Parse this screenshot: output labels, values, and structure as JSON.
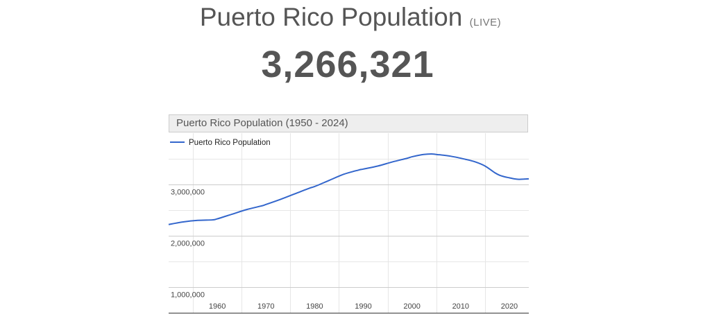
{
  "header": {
    "title": "Puerto Rico Population",
    "live_label": "(LIVE)",
    "counter": "3,266,321"
  },
  "colors": {
    "series": "#3366cc",
    "grid": "#cccccc",
    "minor_grid": "#e6e6e6",
    "text": "#555555"
  },
  "chart_data": {
    "type": "line",
    "title": "Puerto Rico Population (1950 - 2024)",
    "xlabel": "",
    "ylabel": "",
    "xlim": [
      1950,
      2024
    ],
    "ylim": [
      500000,
      4000000
    ],
    "grid": true,
    "legend_position": "top-left",
    "x_ticks": [
      1960,
      1970,
      1980,
      1990,
      2000,
      2010,
      2020
    ],
    "x_tick_labels": [
      "1960",
      "1970",
      "1980",
      "1990",
      "2000",
      "2010",
      "2020"
    ],
    "y_ticks": [
      1000000,
      2000000,
      3000000
    ],
    "y_tick_labels": [
      "1,000,000",
      "2,000,000",
      "3,000,000"
    ],
    "series": [
      {
        "name": "Puerto Rico Population",
        "x": [
          1950,
          1953,
          1956,
          1959,
          1960,
          1963,
          1966,
          1969,
          1970,
          1973,
          1976,
          1979,
          1980,
          1983,
          1986,
          1989,
          1990,
          1993,
          1996,
          1999,
          2000,
          2002,
          2003,
          2004,
          2005,
          2008,
          2011,
          2013,
          2015,
          2017,
          2018,
          2019,
          2020,
          2021,
          2022,
          2023,
          2024
        ],
        "values": [
          2220000,
          2270000,
          2300000,
          2310000,
          2330000,
          2420000,
          2510000,
          2580000,
          2610000,
          2710000,
          2820000,
          2930000,
          2960000,
          3080000,
          3200000,
          3280000,
          3300000,
          3360000,
          3440000,
          3510000,
          3540000,
          3580000,
          3590000,
          3595000,
          3585000,
          3550000,
          3490000,
          3440000,
          3360000,
          3230000,
          3180000,
          3150000,
          3130000,
          3110000,
          3100000,
          3105000,
          3110000
        ]
      }
    ]
  }
}
